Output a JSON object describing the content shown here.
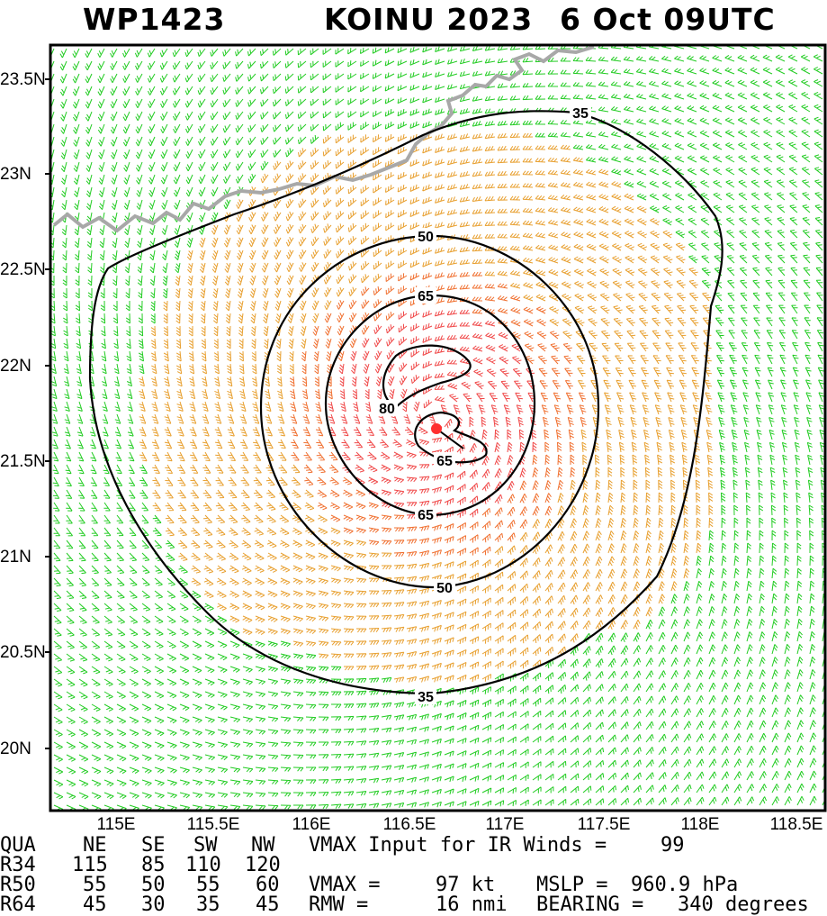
{
  "header": {
    "storm_id": "WP1423",
    "storm_name_year": "KOINU 2023",
    "date_time": "6 Oct 09UTC"
  },
  "axes": {
    "lat_labels": [
      "23.5N",
      "23N",
      "22.5N",
      "22N",
      "21.5N",
      "21N",
      "20.5N",
      "20N"
    ],
    "lon_labels": [
      "115E",
      "115.5E",
      "116E",
      "116.5E",
      "117E",
      "117.5E",
      "118E",
      "118.5E"
    ]
  },
  "contours": {
    "labels": [
      "35",
      "50",
      "65",
      "80",
      "65",
      "65",
      "50",
      "35"
    ]
  },
  "colors": {
    "weak_winds": "#22cc22",
    "moderate_winds": "#e8a030",
    "strong_winds": "#f07030",
    "intense_winds": "#f04848",
    "contour": "#000000",
    "coastline": "#a8a8a8",
    "center": "#ff3030"
  },
  "table": {
    "headers": [
      "QUA",
      "NE",
      "SE",
      "SW",
      "NW"
    ],
    "rows": [
      {
        "label": "R34",
        "ne": "115",
        "se": "85",
        "sw": "110",
        "nw": "120"
      },
      {
        "label": "R50",
        "ne": "55",
        "se": "50",
        "sw": "55",
        "nw": "60"
      },
      {
        "label": "R64",
        "ne": "45",
        "se": "30",
        "sw": "35",
        "nw": "45"
      }
    ]
  },
  "info": {
    "vmax_input_label": "VMAX Input for IR Winds =",
    "vmax_input_value": "99",
    "vmax_label": "VMAX =",
    "vmax_value": "97 kt",
    "mslp_label": "MSLP =",
    "mslp_value": "960.9 hPa",
    "rmw_label": "RMW =",
    "rmw_value": "16 nmi",
    "bearing_label": "BEARING =",
    "bearing_value": "340 degrees"
  }
}
